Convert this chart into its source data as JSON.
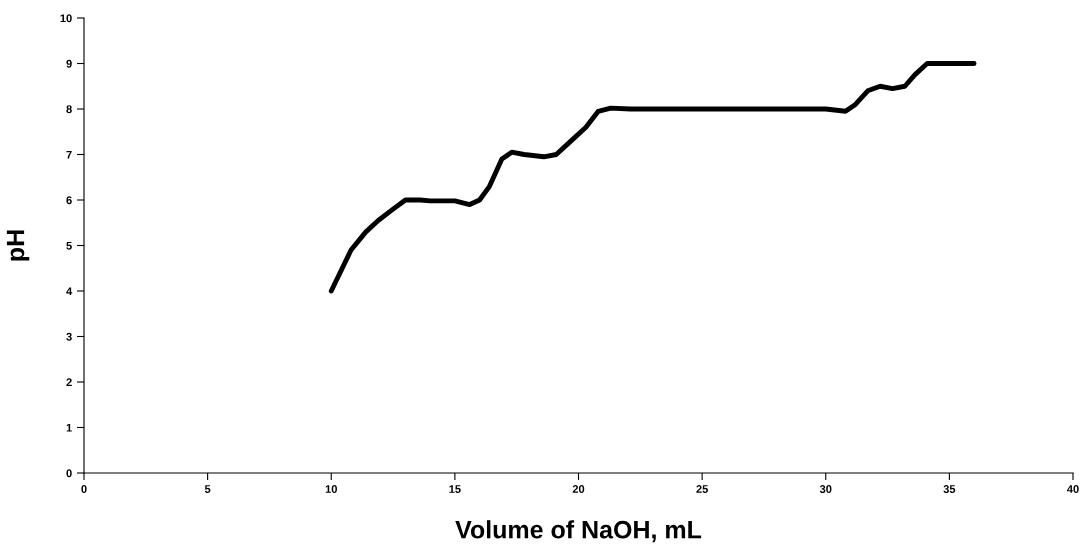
{
  "chart_data": {
    "type": "line",
    "xlabel": "Volume of NaOH, mL",
    "ylabel": "pH",
    "xlim": [
      0,
      40
    ],
    "xticks": [
      0,
      5,
      10,
      15,
      20,
      25,
      30,
      35,
      40
    ],
    "ylim": [
      0,
      10
    ],
    "yticks": [
      0,
      1,
      2,
      3,
      4,
      5,
      6,
      7,
      8,
      9,
      10
    ],
    "grid": false,
    "legend": false,
    "marker": "none",
    "line_style": "solid",
    "series": [
      {
        "color": "#000000",
        "x": [
          10,
          10.8,
          11.4,
          11.9,
          12.5,
          13,
          13.6,
          14,
          15,
          15.6,
          16,
          16.4,
          16.9,
          17.3,
          17.8,
          18.6,
          19.1,
          19.7,
          20.3,
          20.8,
          21.3,
          22.1,
          30,
          30.8,
          31.2,
          31.7,
          32.2,
          32.7,
          33.2,
          33.6,
          34.1,
          34.6,
          36
        ],
        "values": [
          4,
          4.9,
          5.3,
          5.55,
          5.8,
          6,
          6,
          5.98,
          5.98,
          5.9,
          6,
          6.3,
          6.9,
          7.05,
          7,
          6.95,
          7,
          7.3,
          7.6,
          7.95,
          8.02,
          8,
          8,
          7.95,
          8.1,
          8.4,
          8.5,
          8.45,
          8.5,
          8.75,
          9,
          9,
          9
        ]
      }
    ]
  }
}
